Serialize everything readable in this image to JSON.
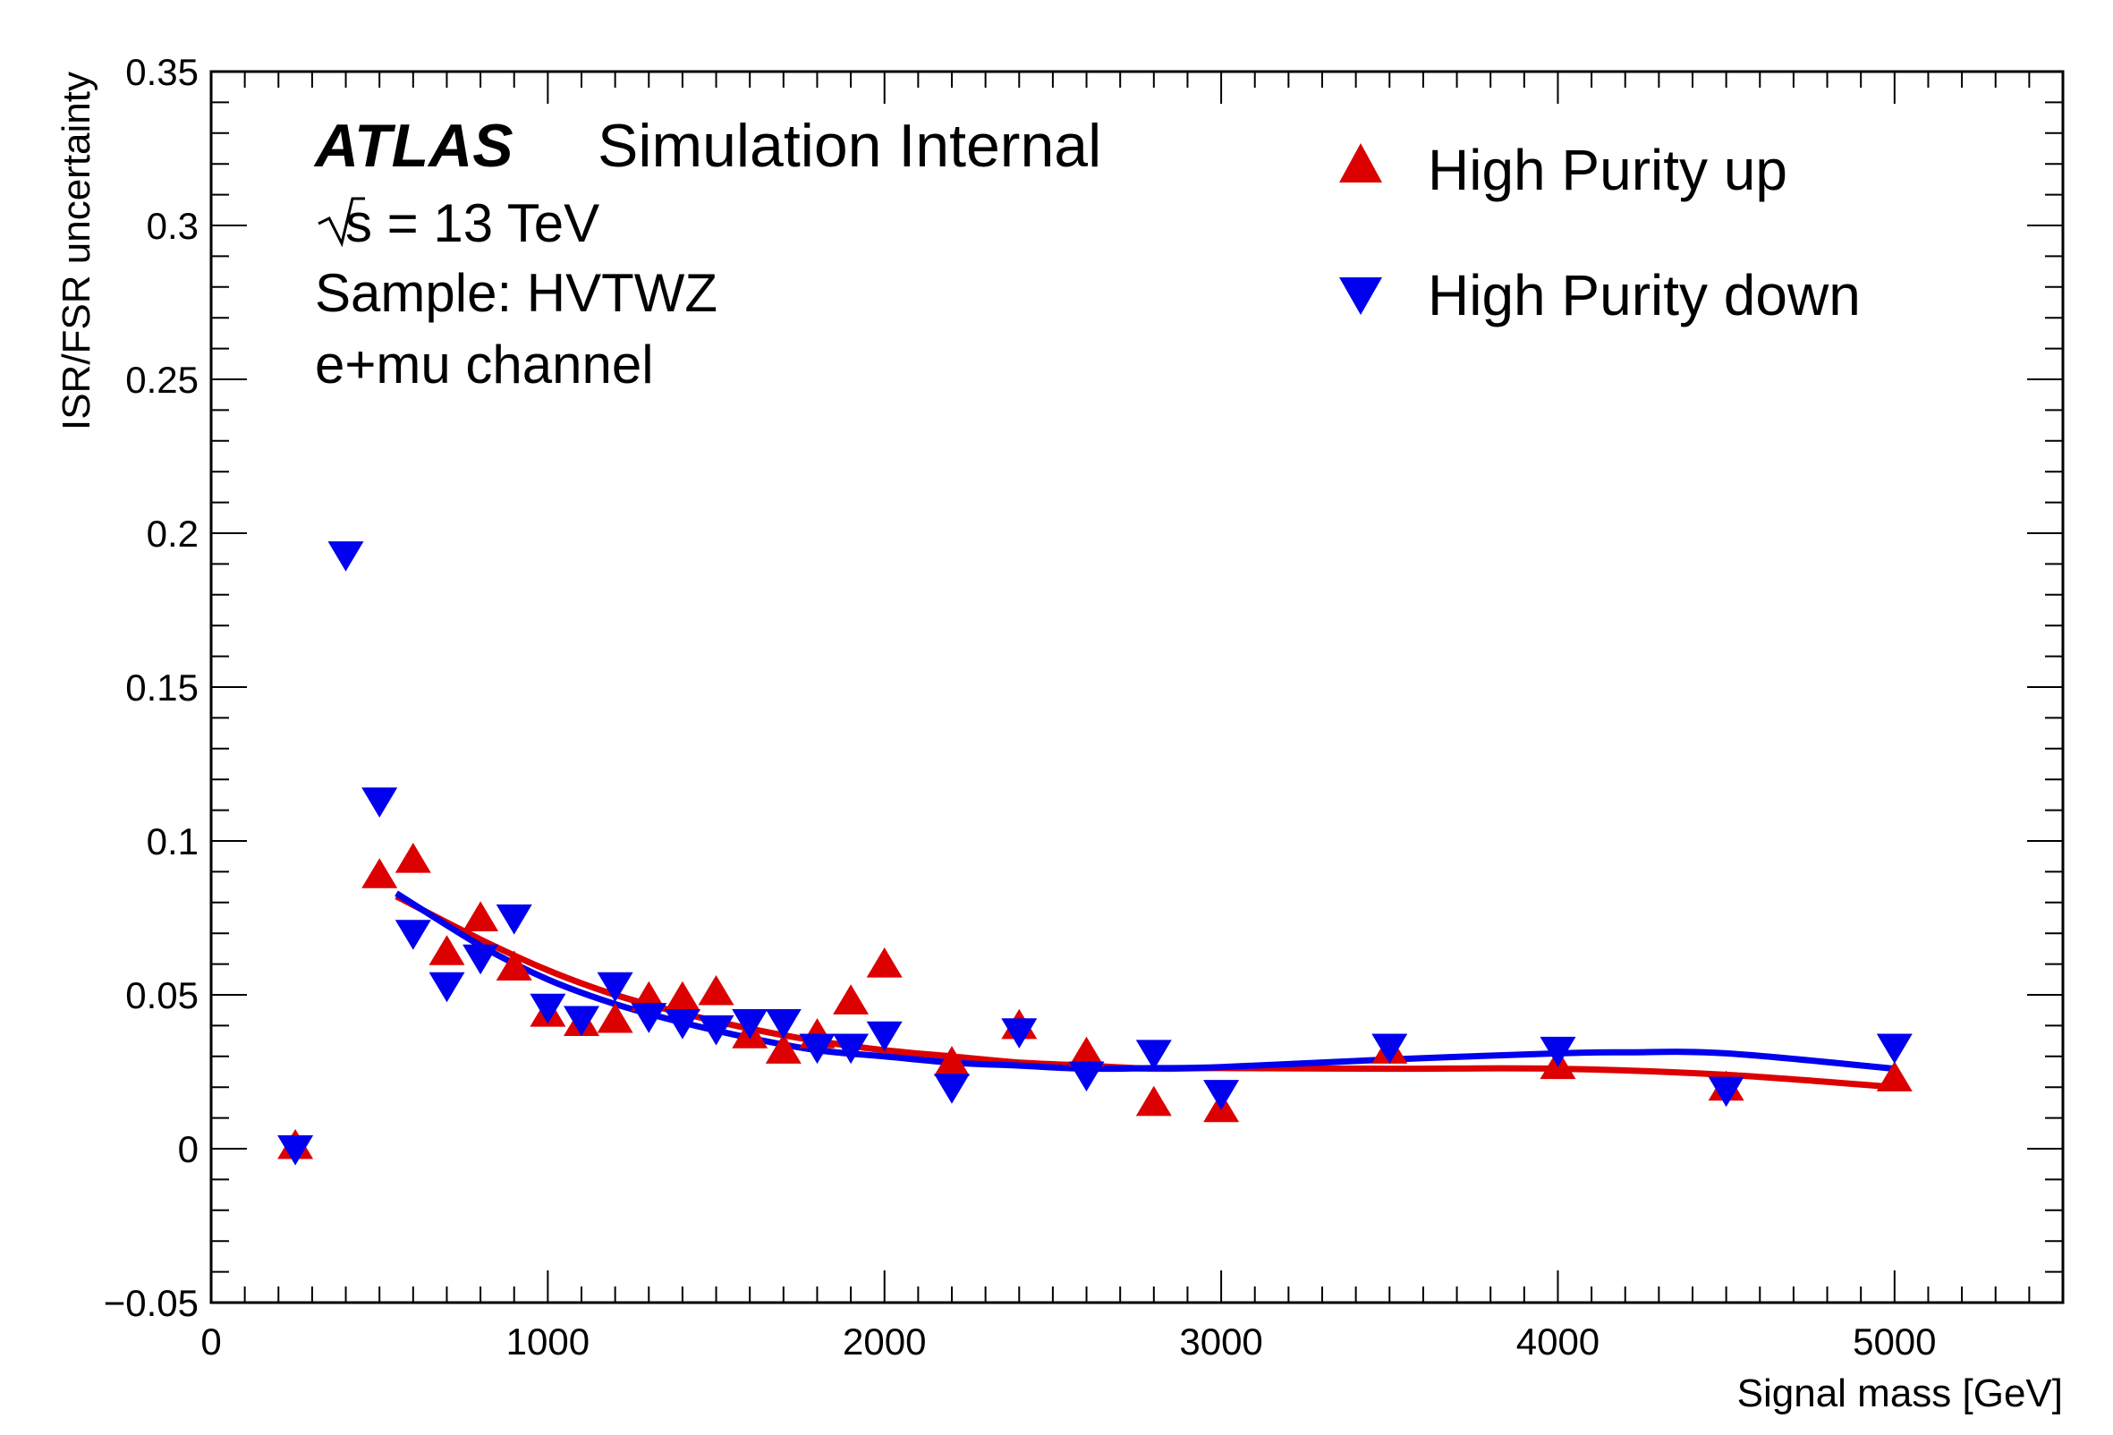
{
  "header": {
    "atlas_label": "ATLAS",
    "atlas_status": "Simulation Internal",
    "energy_label": "s = 13 TeV",
    "sample_label": "Sample: HVTWZ",
    "channel_label": "e+mu channel"
  },
  "legend": {
    "placement": "top-right",
    "entries": [
      {
        "label": "High Purity up",
        "marker": "triangle-up",
        "color": "#dd0000"
      },
      {
        "label": "High Purity down",
        "marker": "triangle-down",
        "color": "#0000ee"
      }
    ]
  },
  "chart_data": {
    "type": "scatter",
    "title": "",
    "xlabel": "Signal mass [GeV]",
    "ylabel": "ISR/FSR uncertainty",
    "xlim": [
      0,
      5500
    ],
    "ylim": [
      -0.05,
      0.35
    ],
    "x_ticks": [
      0,
      1000,
      2000,
      3000,
      4000,
      5000
    ],
    "x_tick_labels": [
      "0",
      "1000",
      "2000",
      "3000",
      "4000",
      "5000"
    ],
    "y_ticks": [
      -0.05,
      0,
      0.05,
      0.1,
      0.15,
      0.2,
      0.25,
      0.3,
      0.35
    ],
    "y_tick_labels": [
      "−0.05",
      "0",
      "0.05",
      "0.1",
      "0.15",
      "0.2",
      "0.25",
      "0.3",
      "0.35"
    ],
    "grid": false,
    "series": [
      {
        "name": "High Purity up",
        "color": "#dd0000",
        "marker": "triangle-up",
        "points": [
          [
            250,
            0.0
          ],
          [
            500,
            0.088
          ],
          [
            600,
            0.093
          ],
          [
            700,
            0.063
          ],
          [
            800,
            0.074
          ],
          [
            900,
            0.058
          ],
          [
            1000,
            0.043
          ],
          [
            1100,
            0.04
          ],
          [
            1200,
            0.041
          ],
          [
            1300,
            0.048
          ],
          [
            1400,
            0.048
          ],
          [
            1500,
            0.05
          ],
          [
            1600,
            0.036
          ],
          [
            1700,
            0.031
          ],
          [
            1800,
            0.036
          ],
          [
            1900,
            0.047
          ],
          [
            2000,
            0.059
          ],
          [
            2200,
            0.027
          ],
          [
            2400,
            0.039
          ],
          [
            2600,
            0.03
          ],
          [
            2800,
            0.014
          ],
          [
            3000,
            0.012
          ],
          [
            3500,
            0.031
          ],
          [
            4000,
            0.026
          ],
          [
            4500,
            0.019
          ],
          [
            5000,
            0.022
          ]
        ],
        "fit": [
          [
            550,
            0.082
          ],
          [
            800,
            0.068
          ],
          [
            1000,
            0.058
          ],
          [
            1200,
            0.05
          ],
          [
            1400,
            0.044
          ],
          [
            1600,
            0.039
          ],
          [
            1800,
            0.035
          ],
          [
            2000,
            0.032
          ],
          [
            2200,
            0.03
          ],
          [
            2400,
            0.028
          ],
          [
            2600,
            0.027
          ],
          [
            2800,
            0.026
          ],
          [
            3000,
            0.0262
          ],
          [
            3500,
            0.026
          ],
          [
            4000,
            0.026
          ],
          [
            4500,
            0.024
          ],
          [
            5000,
            0.02
          ]
        ]
      },
      {
        "name": "High Purity down",
        "color": "#0000ee",
        "marker": "triangle-down",
        "points": [
          [
            250,
            0.001
          ],
          [
            400,
            0.194
          ],
          [
            500,
            0.114
          ],
          [
            600,
            0.071
          ],
          [
            700,
            0.054
          ],
          [
            800,
            0.063
          ],
          [
            900,
            0.076
          ],
          [
            1000,
            0.047
          ],
          [
            1100,
            0.043
          ],
          [
            1200,
            0.054
          ],
          [
            1300,
            0.044
          ],
          [
            1400,
            0.042
          ],
          [
            1500,
            0.04
          ],
          [
            1600,
            0.042
          ],
          [
            1700,
            0.042
          ],
          [
            1800,
            0.034
          ],
          [
            1900,
            0.034
          ],
          [
            2000,
            0.038
          ],
          [
            2200,
            0.021
          ],
          [
            2400,
            0.039
          ],
          [
            2600,
            0.025
          ],
          [
            2800,
            0.032
          ],
          [
            3000,
            0.019
          ],
          [
            3500,
            0.034
          ],
          [
            4000,
            0.033
          ],
          [
            4500,
            0.02
          ],
          [
            5000,
            0.034
          ]
        ],
        "fit": [
          [
            550,
            0.083
          ],
          [
            800,
            0.066
          ],
          [
            1000,
            0.055
          ],
          [
            1200,
            0.047
          ],
          [
            1400,
            0.041
          ],
          [
            1600,
            0.036
          ],
          [
            1800,
            0.032
          ],
          [
            2000,
            0.03
          ],
          [
            2200,
            0.028
          ],
          [
            2400,
            0.027
          ],
          [
            2600,
            0.026
          ],
          [
            2800,
            0.0262
          ],
          [
            3000,
            0.0265
          ],
          [
            3500,
            0.029
          ],
          [
            4000,
            0.031
          ],
          [
            4200,
            0.0313
          ],
          [
            4500,
            0.031
          ],
          [
            5000,
            0.026
          ]
        ]
      }
    ]
  }
}
